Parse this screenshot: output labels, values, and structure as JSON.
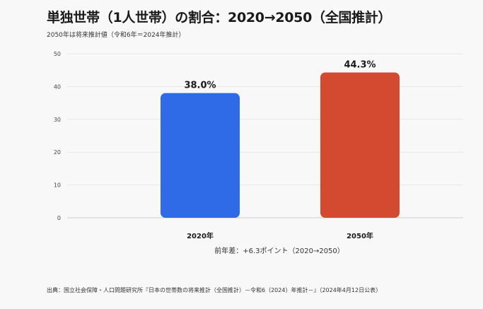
{
  "title": "単独世帯（1人世帯）の割合：2020→2050（全国推計）",
  "subtitle": "2050年は将来推計値（令和6年＝2024年推計）",
  "chart_data": {
    "type": "bar",
    "categories": [
      "2020年",
      "2050年"
    ],
    "values": [
      38.0,
      44.3
    ],
    "value_labels": [
      "38.0%",
      "44.3%"
    ],
    "colors": [
      "#2f6be6",
      "#d34a30"
    ],
    "ylim": [
      0,
      50
    ],
    "yticks": [
      0,
      10,
      20,
      30,
      40,
      50
    ],
    "xlabel": "前年差：+6.3ポイント（2020→2050）",
    "ylabel": "",
    "grid": true,
    "legend": "none"
  },
  "source": "出典：国立社会保障・人口問題研究所『日本の世帯数の将来推計（全国推計）－令和6（2024）年推計－』（2024年4月12日公表）"
}
